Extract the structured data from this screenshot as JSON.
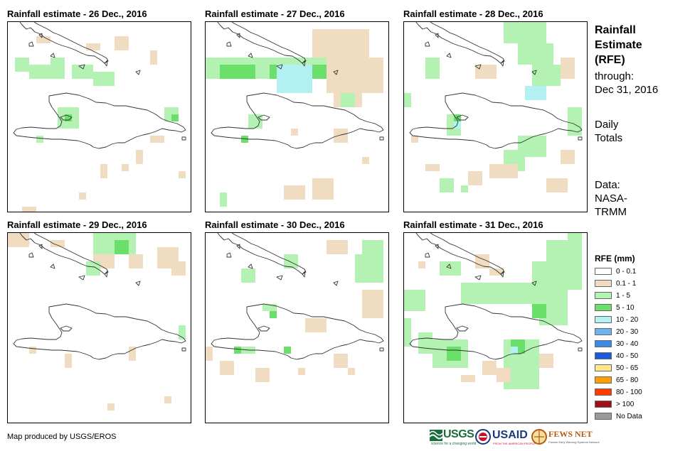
{
  "panels": [
    {
      "title": "Rainfall estimate - 26 Dec., 2016"
    },
    {
      "title": "Rainfall estimate - 27 Dec., 2016"
    },
    {
      "title": "Rainfall estimate - 28 Dec., 2016"
    },
    {
      "title": "Rainfall estimate - 29 Dec., 2016"
    },
    {
      "title": "Rainfall estimate - 30 Dec., 2016"
    },
    {
      "title": "Rainfall estimate - 31 Dec., 2016"
    }
  ],
  "side": {
    "title_lines": [
      "Rainfall",
      "Estimate",
      "(RFE)"
    ],
    "through_lines": [
      "through:",
      "Dec 31, 2016"
    ],
    "totals_lines": [
      "Daily",
      "Totals"
    ],
    "source_lines": [
      "Data:",
      "NASA-",
      "TRMM"
    ]
  },
  "legend": {
    "title": "RFE (mm)",
    "items": [
      {
        "label": "0 - 0.1",
        "color": "#ffffff"
      },
      {
        "label": "0.1 - 1",
        "color": "#f0dcc0"
      },
      {
        "label": "1 - 5",
        "color": "#b3f2b3"
      },
      {
        "label": "5 - 10",
        "color": "#6ae06a"
      },
      {
        "label": "10 - 20",
        "color": "#b3f0f2"
      },
      {
        "label": "20 - 30",
        "color": "#6eb3f2"
      },
      {
        "label": "30 - 40",
        "color": "#3a8ae6"
      },
      {
        "label": "40 - 50",
        "color": "#1a5ad8"
      },
      {
        "label": "50 - 65",
        "color": "#ffe88a"
      },
      {
        "label": "65 - 80",
        "color": "#ffa000"
      },
      {
        "label": "80 - 100",
        "color": "#ff3c00"
      },
      {
        "label": "> 100",
        "color": "#a01010"
      },
      {
        "label": "No Data",
        "color": "#999999"
      }
    ]
  },
  "credit": "Map produced by USGS/EROS",
  "logos": {
    "usgs": "USGS",
    "usgs_tagline": "science for a changing world",
    "usaid": "USAID",
    "usaid_tagline": "FROM THE AMERICAN PEOPLE",
    "fewsnet": "FEWS NET",
    "fewsnet_tagline": "Famine Early Warning Systems Network"
  }
}
